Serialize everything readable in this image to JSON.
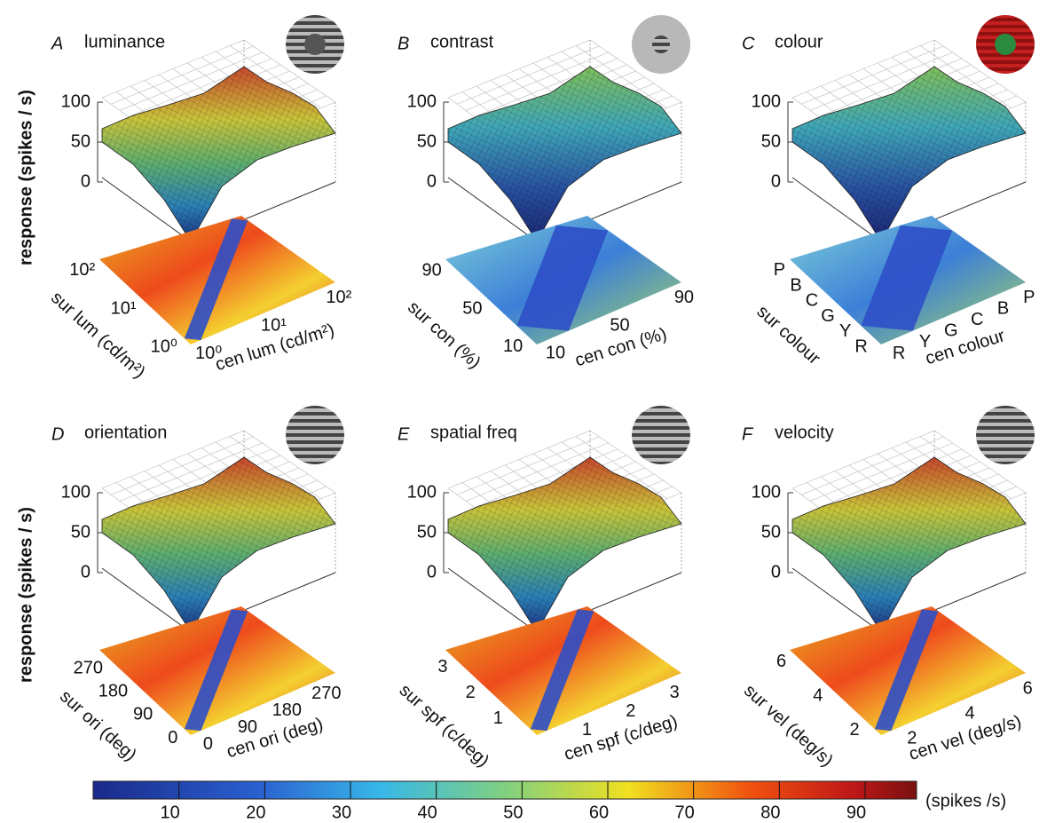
{
  "z_label": "response (spikes / s)",
  "zlim": [
    0,
    100
  ],
  "zticks": [
    0,
    50,
    100
  ],
  "panels": [
    {
      "letter": "A",
      "title": "luminance",
      "sur_label": "sur lum (cd/m²)",
      "cen_label": "cen lum (cd/m²)",
      "sur_ticks": [
        "10⁰",
        "10¹",
        "10²"
      ],
      "cen_ticks": [
        "10⁰",
        "10¹",
        "10²"
      ]
    },
    {
      "letter": "B",
      "title": "contrast",
      "sur_label": "sur con (%)",
      "cen_label": "cen con (%)",
      "sur_ticks": [
        10,
        50,
        90
      ],
      "cen_ticks": [
        10,
        50,
        90
      ],
      "sur_lim": [
        5,
        95
      ],
      "cen_lim": [
        5,
        95
      ]
    },
    {
      "letter": "C",
      "title": "colour",
      "sur_label": "sur colour",
      "cen_label": "cen colour",
      "sur_ticks": [
        "R",
        "Y",
        "G",
        "C",
        "B",
        "P"
      ],
      "cen_ticks": [
        "R",
        "Y",
        "G",
        "C",
        "B",
        "P"
      ]
    },
    {
      "letter": "D",
      "title": "orientation",
      "sur_label": "sur ori (deg)",
      "cen_label": "cen ori (deg)",
      "sur_ticks": [
        0,
        90,
        180,
        270
      ],
      "cen_ticks": [
        0,
        90,
        180,
        270
      ],
      "sur_lim": [
        -15,
        315
      ],
      "cen_lim": [
        -15,
        315
      ]
    },
    {
      "letter": "E",
      "title": "spatial freq",
      "sur_label": "sur spf (c/deg)",
      "cen_label": "cen spf (c/deg)",
      "sur_ticks": [
        1,
        2,
        3
      ],
      "cen_ticks": [
        1,
        2,
        3
      ],
      "sur_lim": [
        0.1,
        3.4
      ],
      "cen_lim": [
        0.1,
        3.4
      ]
    },
    {
      "letter": "F",
      "title": "velocity",
      "sur_label": "sur vel (deg/s)",
      "cen_label": "cen vel (deg/s)",
      "sur_ticks": [
        2,
        4,
        6
      ],
      "cen_ticks": [
        2,
        4,
        6
      ],
      "sur_lim": [
        1.3,
        6.3
      ],
      "cen_lim": [
        1.3,
        6.3
      ]
    }
  ],
  "colorbar": {
    "lim": [
      0,
      96
    ],
    "ticks": [
      10,
      20,
      30,
      40,
      50,
      60,
      70,
      80,
      90
    ],
    "label": "(spikes /s)"
  }
}
